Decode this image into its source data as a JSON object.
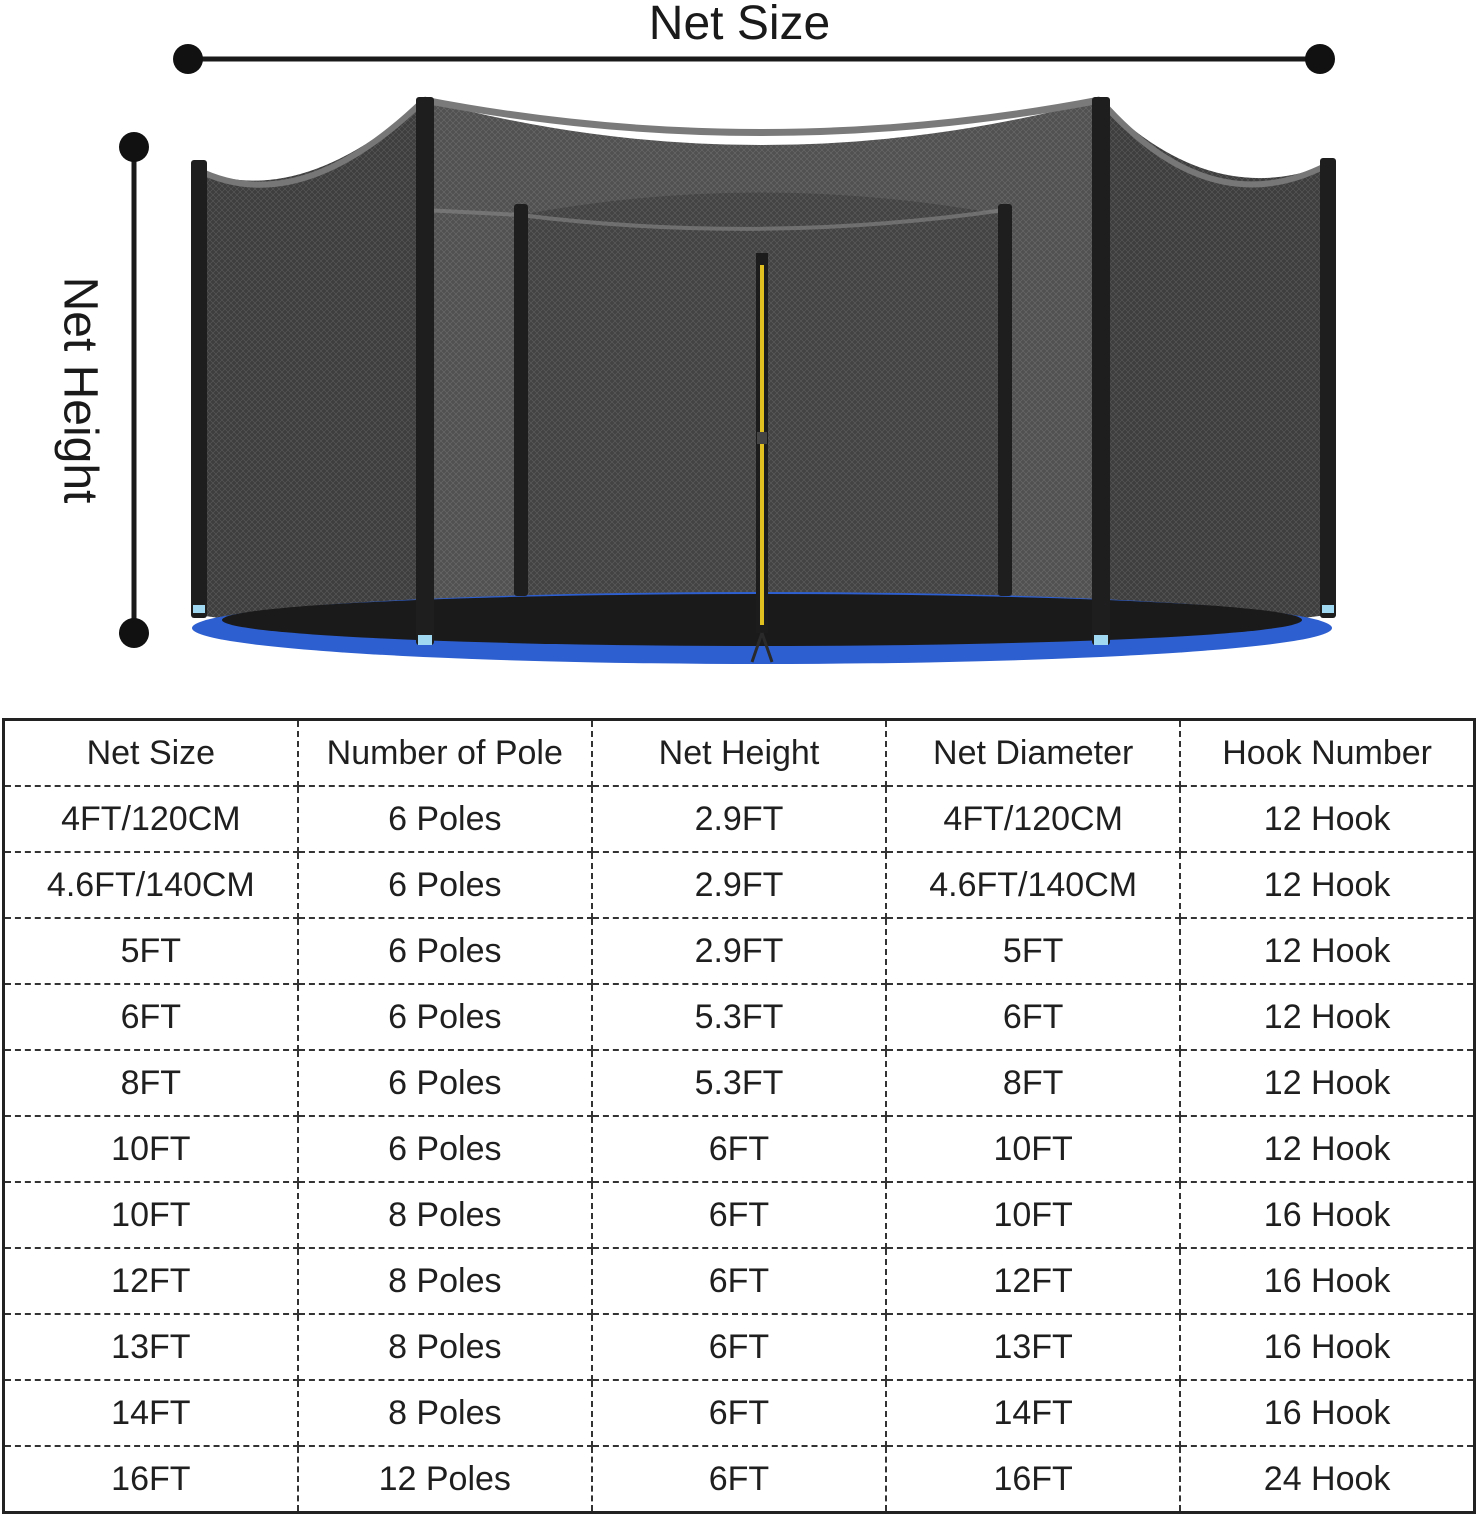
{
  "dimensions": {
    "size_label": "Net Size",
    "height_label": "Net Height"
  },
  "colors": {
    "net": "#3b3b3b",
    "pole": "#1e1e1e",
    "frame_pad": "#2e5fd0",
    "mat": "#1a1a1a",
    "zipper": "#e0c020"
  },
  "table": {
    "headers": [
      "Net Size",
      "Number of Pole",
      "Net Height",
      "Net Diameter",
      "Hook Number"
    ],
    "rows": [
      [
        "4FT/120CM",
        "6 Poles",
        "2.9FT",
        "4FT/120CM",
        "12 Hook"
      ],
      [
        "4.6FT/140CM",
        "6 Poles",
        "2.9FT",
        "4.6FT/140CM",
        "12 Hook"
      ],
      [
        "5FT",
        "6 Poles",
        "2.9FT",
        "5FT",
        "12 Hook"
      ],
      [
        "6FT",
        "6 Poles",
        "5.3FT",
        "6FT",
        "12 Hook"
      ],
      [
        "8FT",
        "6 Poles",
        "5.3FT",
        "8FT",
        "12 Hook"
      ],
      [
        "10FT",
        "6 Poles",
        "6FT",
        "10FT",
        "12 Hook"
      ],
      [
        "10FT",
        "8 Poles",
        "6FT",
        "10FT",
        "16 Hook"
      ],
      [
        "12FT",
        "8 Poles",
        "6FT",
        "12FT",
        "16 Hook"
      ],
      [
        "13FT",
        "8 Poles",
        "6FT",
        "13FT",
        "16 Hook"
      ],
      [
        "14FT",
        "8 Poles",
        "6FT",
        "14FT",
        "16 Hook"
      ],
      [
        "16FT",
        "12 Poles",
        "6FT",
        "16FT",
        "24 Hook"
      ]
    ]
  }
}
